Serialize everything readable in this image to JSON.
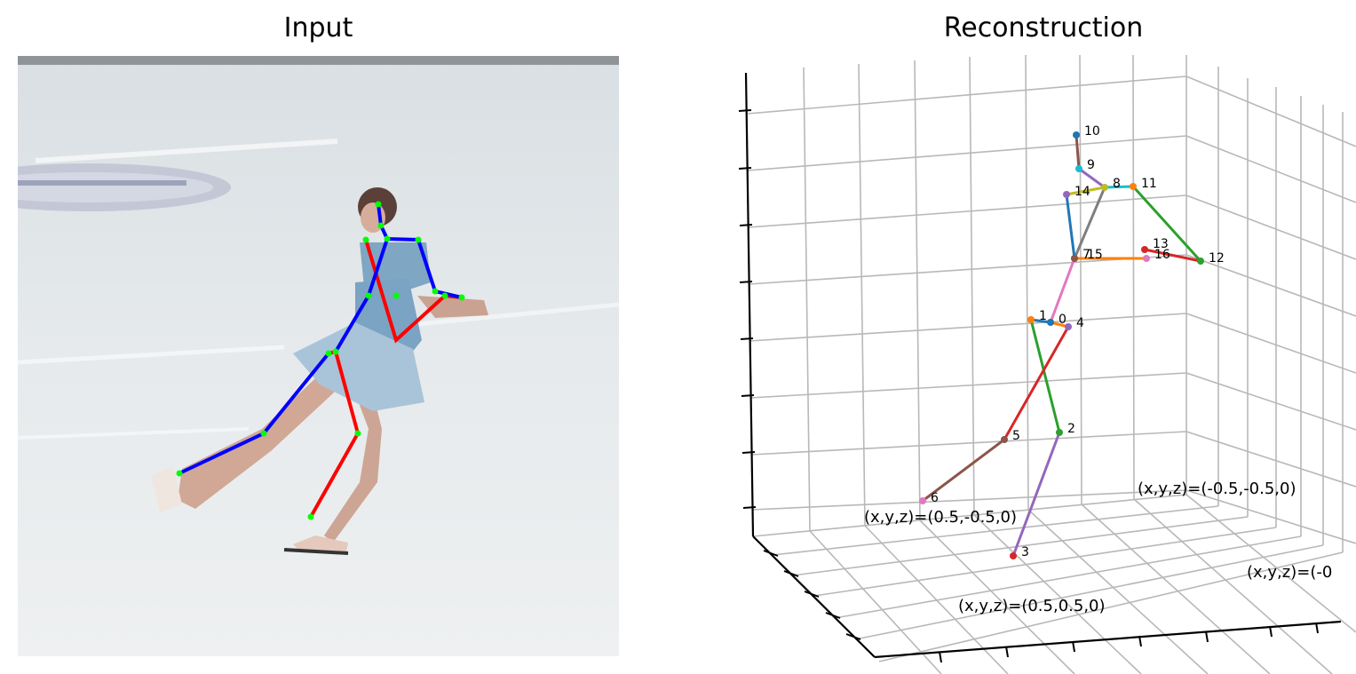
{
  "panels": {
    "left": {
      "title": "Input"
    },
    "right": {
      "title": "Reconstruction"
    }
  },
  "colors": {
    "ice": "#e4e9ec",
    "skel_left": "#0000ff",
    "skel_right": "#ff0000",
    "joint_dot": "#00ff00",
    "grid": "#b8b8b8"
  },
  "reconstruction": {
    "joint_labels": [
      "0",
      "1",
      "2",
      "3",
      "4",
      "5",
      "6",
      "7",
      "8",
      "9",
      "10",
      "11",
      "12",
      "13",
      "14",
      "15",
      "16"
    ],
    "corner_labels": [
      "(x,y,z)=(0.5,-0.5,0)",
      "(x,y,z)=(-0.5,-0.5,0)",
      "(x,y,z)=(0.5,0.5,0)",
      "(x,y,z)=(-0"
    ]
  }
}
